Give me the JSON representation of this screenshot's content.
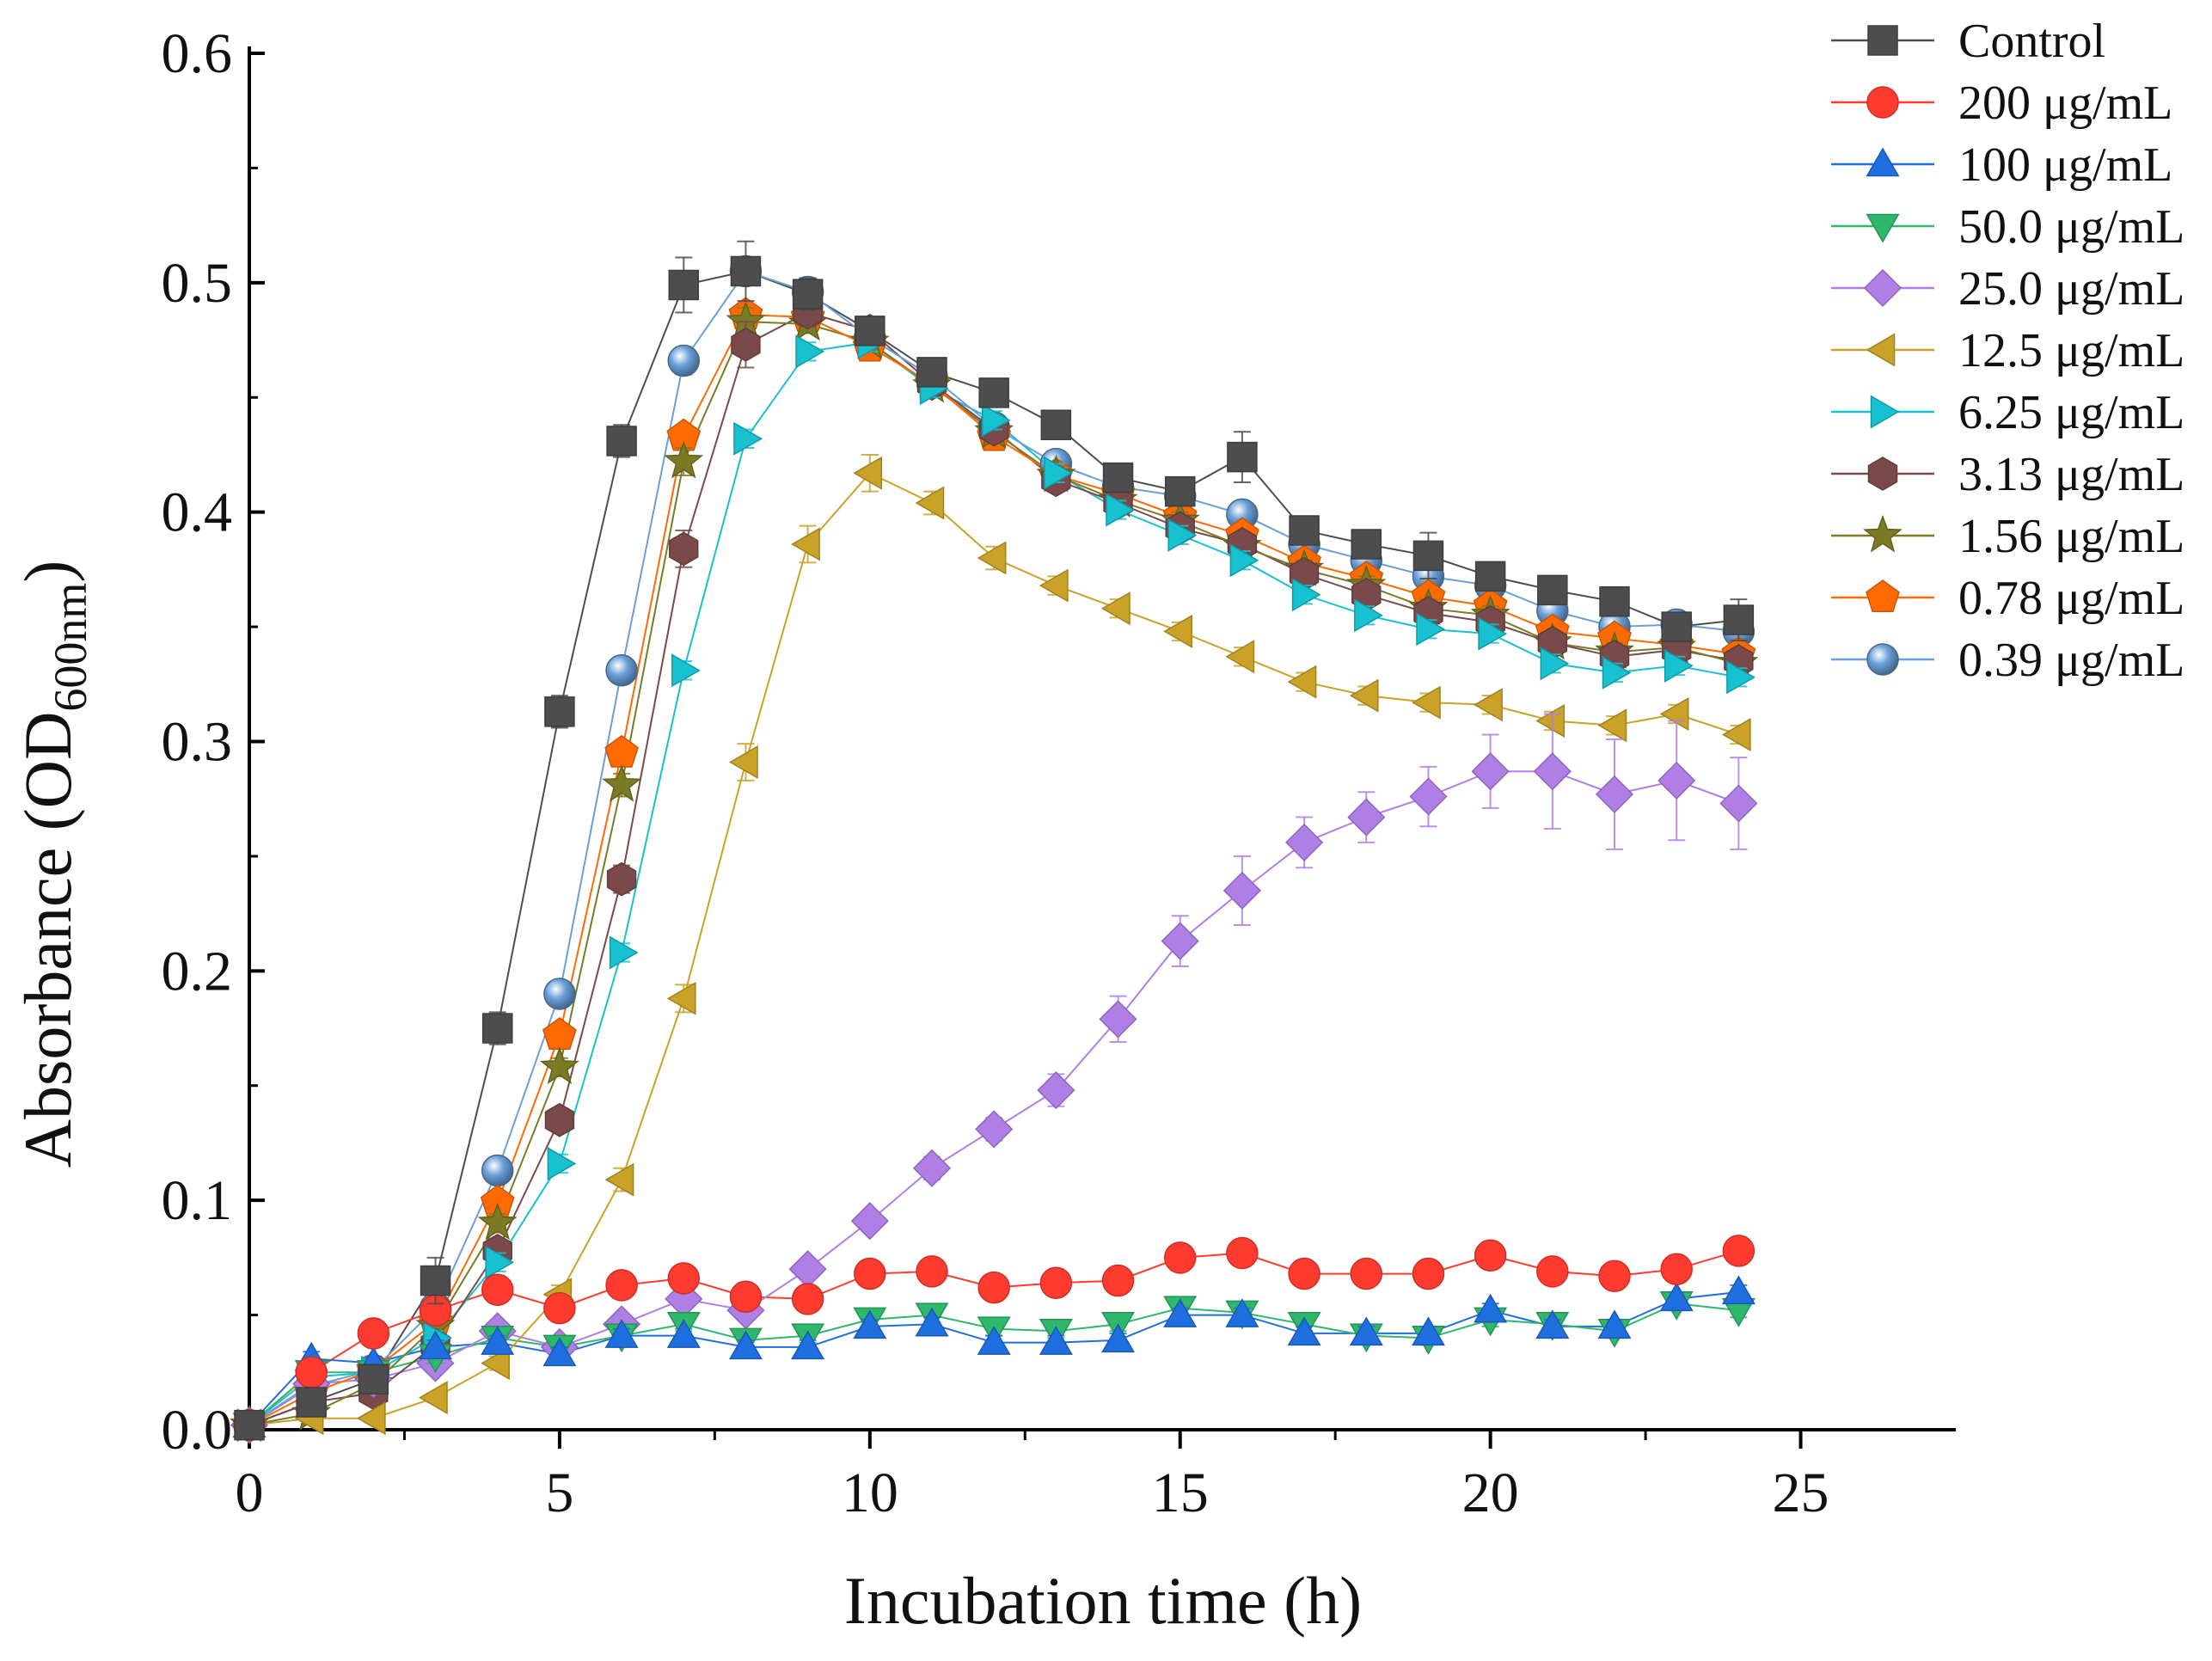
{
  "chart_data": {
    "type": "line",
    "title": "",
    "xlabel": "Incubation time (h)",
    "ylabel": {
      "main": "Absorbance (OD",
      "subscript": "600nm",
      "close": ")"
    },
    "xlim": [
      0,
      27.5
    ],
    "ylim": [
      0,
      0.6
    ],
    "xticks": [
      0,
      5,
      10,
      15,
      20,
      25
    ],
    "xtick_labels": [
      "0",
      "5",
      "10",
      "15",
      "20",
      "25"
    ],
    "yticks": [
      0,
      0.1,
      0.2,
      0.3,
      0.4,
      0.5,
      0.6
    ],
    "ytick_labels": [
      "0.0",
      "0.1",
      "0.2",
      "0.3",
      "0.4",
      "0.5",
      "0.6"
    ],
    "legend_position": "top-right",
    "x": [
      0,
      1,
      2,
      3,
      4,
      5,
      6,
      7,
      8,
      9,
      10,
      11,
      12,
      13,
      14,
      15,
      16,
      17,
      18,
      19,
      20,
      21,
      22,
      23,
      24
    ],
    "series": [
      {
        "name": "Control",
        "color": "#4d4d4d",
        "marker": "square",
        "values": [
          0.002,
          0.012,
          0.022,
          0.065,
          0.175,
          0.313,
          0.431,
          0.499,
          0.505,
          0.495,
          0.479,
          0.461,
          0.452,
          0.438,
          0.415,
          0.409,
          0.424,
          0.392,
          0.386,
          0.381,
          0.372,
          0.366,
          0.361,
          0.35,
          0.353
        ],
        "errors": [
          0,
          0,
          0,
          0.01,
          0.007,
          0.007,
          0.007,
          0.012,
          0.013,
          0.007,
          0.006,
          0.006,
          0.005,
          0.006,
          0.006,
          0.005,
          0.011,
          0.005,
          0.004,
          0.01,
          0.006,
          0.005,
          0.005,
          0.006,
          0.009
        ]
      },
      {
        "name": "200 μg/mL",
        "color": "#ff3b30",
        "marker": "circle",
        "values": [
          0.002,
          0.025,
          0.042,
          0.052,
          0.061,
          0.053,
          0.063,
          0.066,
          0.058,
          0.057,
          0.068,
          0.069,
          0.062,
          0.064,
          0.065,
          0.075,
          0.077,
          0.068,
          0.068,
          0.068,
          0.076,
          0.069,
          0.067,
          0.07,
          0.078
        ],
        "errors": [
          0,
          0.003,
          0.003,
          0.003,
          0.003,
          0.004,
          0.003,
          0.003,
          0.003,
          0.003,
          0.003,
          0.003,
          0.003,
          0.003,
          0.003,
          0.003,
          0.003,
          0.003,
          0.003,
          0.003,
          0.003,
          0.003,
          0.003,
          0.003,
          0.003
        ]
      },
      {
        "name": "100 μg/mL",
        "color": "#1f6fe0",
        "marker": "triangle-up",
        "values": [
          0.002,
          0.031,
          0.029,
          0.036,
          0.038,
          0.033,
          0.041,
          0.041,
          0.036,
          0.036,
          0.045,
          0.046,
          0.038,
          0.038,
          0.039,
          0.05,
          0.05,
          0.042,
          0.042,
          0.042,
          0.052,
          0.045,
          0.045,
          0.057,
          0.06
        ],
        "errors": [
          0,
          0.003,
          0.003,
          0.003,
          0.003,
          0.003,
          0.003,
          0.003,
          0.003,
          0.003,
          0.003,
          0.003,
          0.003,
          0.003,
          0.003,
          0.003,
          0.003,
          0.003,
          0.003,
          0.003,
          0.003,
          0.003,
          0.003,
          0.003,
          0.003
        ]
      },
      {
        "name": "50.0 μg/mL",
        "color": "#2eb86b",
        "marker": "triangle-down",
        "values": [
          0.002,
          0.025,
          0.025,
          0.032,
          0.04,
          0.036,
          0.041,
          0.046,
          0.039,
          0.041,
          0.048,
          0.05,
          0.044,
          0.043,
          0.046,
          0.053,
          0.051,
          0.046,
          0.041,
          0.04,
          0.048,
          0.046,
          0.043,
          0.055,
          0.052
        ],
        "errors": [
          0,
          0.003,
          0.003,
          0.003,
          0.003,
          0.003,
          0.003,
          0.003,
          0.003,
          0.003,
          0.003,
          0.003,
          0.003,
          0.003,
          0.003,
          0.003,
          0.003,
          0.003,
          0.003,
          0.003,
          0.003,
          0.003,
          0.003,
          0.003,
          0.003
        ]
      },
      {
        "name": "25.0 μg/mL",
        "color": "#b07fe6",
        "marker": "diamond",
        "values": [
          0.002,
          0.02,
          0.022,
          0.029,
          0.043,
          0.036,
          0.046,
          0.057,
          0.052,
          0.07,
          0.091,
          0.114,
          0.131,
          0.148,
          0.179,
          0.213,
          0.235,
          0.256,
          0.267,
          0.276,
          0.287,
          0.287,
          0.277,
          0.283,
          0.273
        ],
        "errors": [
          0,
          0.003,
          0.003,
          0.003,
          0.003,
          0.003,
          0.003,
          0.004,
          0.004,
          0.004,
          0.004,
          0.005,
          0.005,
          0.007,
          0.01,
          0.011,
          0.015,
          0.011,
          0.011,
          0.013,
          0.016,
          0.025,
          0.024,
          0.026,
          0.02
        ]
      },
      {
        "name": "12.5 μg/mL",
        "color": "#c9a227",
        "marker": "triangle-left",
        "values": [
          0.002,
          0.005,
          0.005,
          0.014,
          0.029,
          0.059,
          0.109,
          0.188,
          0.291,
          0.386,
          0.417,
          0.404,
          0.38,
          0.368,
          0.358,
          0.348,
          0.337,
          0.326,
          0.32,
          0.317,
          0.316,
          0.309,
          0.307,
          0.312,
          0.303
        ],
        "errors": [
          0,
          0.002,
          0.002,
          0.002,
          0.003,
          0.004,
          0.005,
          0.006,
          0.008,
          0.008,
          0.008,
          0.005,
          0.005,
          0.004,
          0.004,
          0.004,
          0.004,
          0.004,
          0.004,
          0.004,
          0.004,
          0.004,
          0.004,
          0.004,
          0.004
        ]
      },
      {
        "name": "6.25 μg/mL",
        "color": "#17c1cf",
        "marker": "triangle-right",
        "values": [
          0.002,
          0.023,
          0.025,
          0.04,
          0.073,
          0.116,
          0.208,
          0.331,
          0.432,
          0.47,
          0.474,
          0.454,
          0.44,
          0.417,
          0.401,
          0.39,
          0.379,
          0.364,
          0.355,
          0.349,
          0.347,
          0.334,
          0.33,
          0.333,
          0.328
        ],
        "errors": [
          0,
          0.003,
          0.003,
          0.003,
          0.004,
          0.004,
          0.004,
          0.004,
          0.004,
          0.004,
          0.004,
          0.004,
          0.004,
          0.004,
          0.004,
          0.004,
          0.004,
          0.004,
          0.004,
          0.004,
          0.004,
          0.004,
          0.004,
          0.004,
          0.004
        ]
      },
      {
        "name": "3.13 μg/mL",
        "color": "#7a4a4a",
        "marker": "hexagon",
        "values": [
          0.002,
          0.012,
          0.016,
          0.037,
          0.078,
          0.135,
          0.24,
          0.384,
          0.473,
          0.487,
          0.479,
          0.456,
          0.436,
          0.414,
          0.404,
          0.393,
          0.386,
          0.373,
          0.364,
          0.356,
          0.352,
          0.343,
          0.337,
          0.34,
          0.335
        ],
        "errors": [
          0,
          0.003,
          0.003,
          0.003,
          0.004,
          0.005,
          0.006,
          0.008,
          0.01,
          0.006,
          0.005,
          0.004,
          0.004,
          0.004,
          0.004,
          0.004,
          0.004,
          0.004,
          0.004,
          0.004,
          0.004,
          0.004,
          0.004,
          0.004,
          0.004
        ]
      },
      {
        "name": "1.56 μg/mL",
        "color": "#7b7a25",
        "marker": "star",
        "values": [
          0.002,
          0.007,
          0.02,
          0.045,
          0.09,
          0.158,
          0.281,
          0.422,
          0.483,
          0.482,
          0.474,
          0.455,
          0.435,
          0.416,
          0.405,
          0.396,
          0.385,
          0.375,
          0.368,
          0.358,
          0.355,
          0.343,
          0.339,
          0.341,
          0.334
        ],
        "errors": [
          0,
          0.003,
          0.003,
          0.003,
          0.004,
          0.004,
          0.005,
          0.006,
          0.006,
          0.004,
          0.004,
          0.004,
          0.004,
          0.004,
          0.004,
          0.004,
          0.004,
          0.004,
          0.004,
          0.004,
          0.004,
          0.004,
          0.004,
          0.004,
          0.004
        ]
      },
      {
        "name": "0.78 μg/mL",
        "color": "#ff6a00",
        "marker": "pentagon",
        "values": [
          0.002,
          0.016,
          0.026,
          0.047,
          0.099,
          0.172,
          0.295,
          0.433,
          0.486,
          0.485,
          0.472,
          0.456,
          0.433,
          0.416,
          0.408,
          0.398,
          0.39,
          0.378,
          0.371,
          0.363,
          0.359,
          0.348,
          0.345,
          0.342,
          0.338
        ],
        "errors": [
          0,
          0.003,
          0.003,
          0.003,
          0.004,
          0.004,
          0.005,
          0.005,
          0.005,
          0.004,
          0.004,
          0.004,
          0.004,
          0.004,
          0.004,
          0.004,
          0.004,
          0.004,
          0.004,
          0.004,
          0.004,
          0.004,
          0.004,
          0.004,
          0.004
        ]
      },
      {
        "name": "0.39 μg/mL",
        "color": "#6a9fd8",
        "marker": "sphere",
        "values": [
          0.002,
          0.019,
          0.026,
          0.053,
          0.113,
          0.19,
          0.331,
          0.466,
          0.505,
          0.496,
          0.476,
          0.459,
          0.437,
          0.421,
          0.411,
          0.407,
          0.399,
          0.386,
          0.379,
          0.372,
          0.368,
          0.357,
          0.35,
          0.351,
          0.348
        ],
        "errors": [
          0,
          0.003,
          0.003,
          0.003,
          0.004,
          0.004,
          0.005,
          0.006,
          0.006,
          0.004,
          0.004,
          0.004,
          0.004,
          0.004,
          0.004,
          0.004,
          0.004,
          0.004,
          0.004,
          0.004,
          0.004,
          0.004,
          0.004,
          0.004,
          0.004
        ]
      }
    ]
  }
}
